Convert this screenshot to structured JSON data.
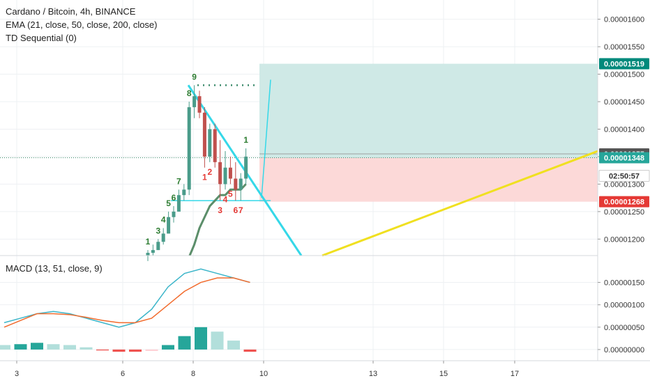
{
  "header": {
    "symbol_line": "Cardano / Bitcoin, 4h, BINANCE",
    "ema_line": "EMA (21, close, 50, close, 200, close)",
    "td_line": "TD Sequential (0)"
  },
  "macd_panel": {
    "label": "MACD (13, 51, close, 9)"
  },
  "colors": {
    "up_candle": "#4a9c8a",
    "down_candle": "#c0504d",
    "ema": "#5b8e6a",
    "trendline": "#35d8e8",
    "yellow_line": "#f0e020",
    "profit_zone": "#cfe9e6",
    "loss_zone": "#fcd9d8",
    "macd_line": "#3bb5c9",
    "signal_line": "#f26b2d",
    "hist_up_strong": "#26a69a",
    "hist_up_weak": "#b2dfdb",
    "hist_down_strong": "#ef5350",
    "hist_down_weak": "#ffcdd2",
    "td_green": "#2e7d32",
    "td_red": "#e53935"
  },
  "chart_data": [
    {
      "type": "candlestick",
      "title": "Cardano / Bitcoin, 4h, BINANCE",
      "ylim": [
        1.17e-05,
        1.635e-05
      ],
      "x_ticks": [
        "3",
        "6",
        "8",
        "10",
        "13",
        "15",
        "17"
      ],
      "y_ticks": [
        "0.00001200",
        "0.00001250",
        "0.00001300",
        "0.00001350",
        "0.00001400",
        "0.00001450",
        "0.00001500",
        "0.00001550",
        "0.00001600"
      ],
      "ohlc": [
        [
          1.17e-05,
          1.18e-05,
          1.16e-05,
          1.175e-05
        ],
        [
          1.175e-05,
          1.19e-05,
          1.17e-05,
          1.18e-05
        ],
        [
          1.18e-05,
          1.2e-05,
          1.18e-05,
          1.195e-05
        ],
        [
          1.195e-05,
          1.22e-05,
          1.19e-05,
          1.21e-05
        ],
        [
          1.21e-05,
          1.25e-05,
          1.21e-05,
          1.24e-05
        ],
        [
          1.24e-05,
          1.26e-05,
          1.23e-05,
          1.25e-05
        ],
        [
          1.25e-05,
          1.29e-05,
          1.25e-05,
          1.28e-05
        ],
        [
          1.28e-05,
          1.3e-05,
          1.27e-05,
          1.29e-05
        ],
        [
          1.29e-05,
          1.45e-05,
          1.28e-05,
          1.44e-05
        ],
        [
          1.44e-05,
          1.48e-05,
          1.42e-05,
          1.46e-05
        ],
        [
          1.46e-05,
          1.47e-05,
          1.42e-05,
          1.43e-05
        ],
        [
          1.43e-05,
          1.44e-05,
          1.33e-05,
          1.35e-05
        ],
        [
          1.35e-05,
          1.41e-05,
          1.34e-05,
          1.4e-05
        ],
        [
          1.4e-05,
          1.41e-05,
          1.33e-05,
          1.34e-05
        ],
        [
          1.34e-05,
          1.38e-05,
          1.27e-05,
          1.3e-05
        ],
        [
          1.3e-05,
          1.36e-05,
          1.29e-05,
          1.33e-05
        ],
        [
          1.33e-05,
          1.35e-05,
          1.3e-05,
          1.31e-05
        ],
        [
          1.31e-05,
          1.34e-05,
          1.27e-05,
          1.29e-05
        ],
        [
          1.29e-05,
          1.32e-05,
          1.27e-05,
          1.31e-05
        ],
        [
          1.31e-05,
          1.365e-05,
          1.3e-05,
          1.35e-05
        ]
      ],
      "ema_values": [
        null,
        null,
        null,
        null,
        null,
        null,
        null,
        null,
        null,
        1.19e-05,
        1.22e-05,
        1.24e-05,
        1.26e-05,
        1.27e-05,
        1.28e-05,
        1.28e-05,
        1.29e-05,
        1.29e-05,
        1.29e-05,
        1.3e-05
      ],
      "td_sequential": [
        {
          "bar": 0,
          "label": "1",
          "color": "green",
          "pos": "above"
        },
        {
          "bar": 2,
          "label": "3",
          "color": "green",
          "pos": "above"
        },
        {
          "bar": 3,
          "label": "4",
          "color": "green",
          "pos": "above"
        },
        {
          "bar": 4,
          "label": "5",
          "color": "green",
          "pos": "above"
        },
        {
          "bar": 5,
          "label": "6",
          "color": "green",
          "pos": "above"
        },
        {
          "bar": 6,
          "label": "7",
          "color": "green",
          "pos": "above"
        },
        {
          "bar": 8,
          "label": "8",
          "color": "green",
          "pos": "above"
        },
        {
          "bar": 9,
          "label": "9",
          "color": "green",
          "pos": "above"
        },
        {
          "bar": 11,
          "label": "1",
          "color": "red",
          "pos": "below"
        },
        {
          "bar": 12,
          "label": "2",
          "color": "red",
          "pos": "below"
        },
        {
          "bar": 14,
          "label": "3",
          "color": "red",
          "pos": "below"
        },
        {
          "bar": 15,
          "label": "4",
          "color": "red",
          "pos": "below"
        },
        {
          "bar": 16,
          "label": "5",
          "color": "red",
          "pos": "below"
        },
        {
          "bar": 17,
          "label": "6",
          "color": "red",
          "pos": "below"
        },
        {
          "bar": 18,
          "label": "7",
          "color": "red",
          "pos": "below"
        },
        {
          "bar": 19,
          "label": "1",
          "color": "green",
          "pos": "above"
        }
      ],
      "position_tool": {
        "target": 1.519e-05,
        "entry": 1.348e-05,
        "stop": 1.268e-05
      },
      "price_tags": [
        {
          "label": "0.00001519",
          "value": 1.519e-05,
          "bg": "#00897b"
        },
        {
          "label": "0.00001355",
          "value": 1.355e-05,
          "bg": "#555555"
        },
        {
          "label": "0.00001348",
          "value": 1.348e-05,
          "bg": "#26a69a"
        },
        {
          "label": "02:50:57",
          "value": 1.315e-05,
          "bg": "#ffffff",
          "fg": "#333333"
        },
        {
          "label": "0.00001268",
          "value": 1.268e-05,
          "bg": "#e53935"
        }
      ],
      "current_price": 1.348e-05
    },
    {
      "type": "line",
      "title": "MACD (13, 51, close, 9)",
      "ylim": [
        -2.5e-07,
        2.1e-06
      ],
      "y_ticks": [
        "0.00000000",
        "0.00000050",
        "0.00000100",
        "0.00000150"
      ],
      "series": [
        {
          "name": "MACD",
          "values": [
            6e-07,
            7e-07,
            8e-07,
            8.5e-07,
            8e-07,
            7e-07,
            6e-07,
            5e-07,
            6e-07,
            9e-07,
            1.4e-06,
            1.7e-06,
            1.8e-06,
            1.7e-06,
            1.6e-06,
            1.5e-06
          ]
        },
        {
          "name": "Signal",
          "values": [
            5e-07,
            6.5e-07,
            8e-07,
            8e-07,
            7.8e-07,
            7.2e-07,
            6.5e-07,
            6e-07,
            6e-07,
            7e-07,
            1e-06,
            1.3e-06,
            1.5e-06,
            1.6e-06,
            1.6e-06,
            1.5e-06
          ]
        }
      ],
      "histogram": [
        1e-07,
        1.2e-07,
        1.5e-07,
        1.2e-07,
        1e-07,
        5e-08,
        -2e-08,
        -5e-08,
        -5e-08,
        -3e-08,
        1e-07,
        3e-07,
        5e-07,
        4e-07,
        2e-07,
        -5e-08
      ]
    }
  ]
}
